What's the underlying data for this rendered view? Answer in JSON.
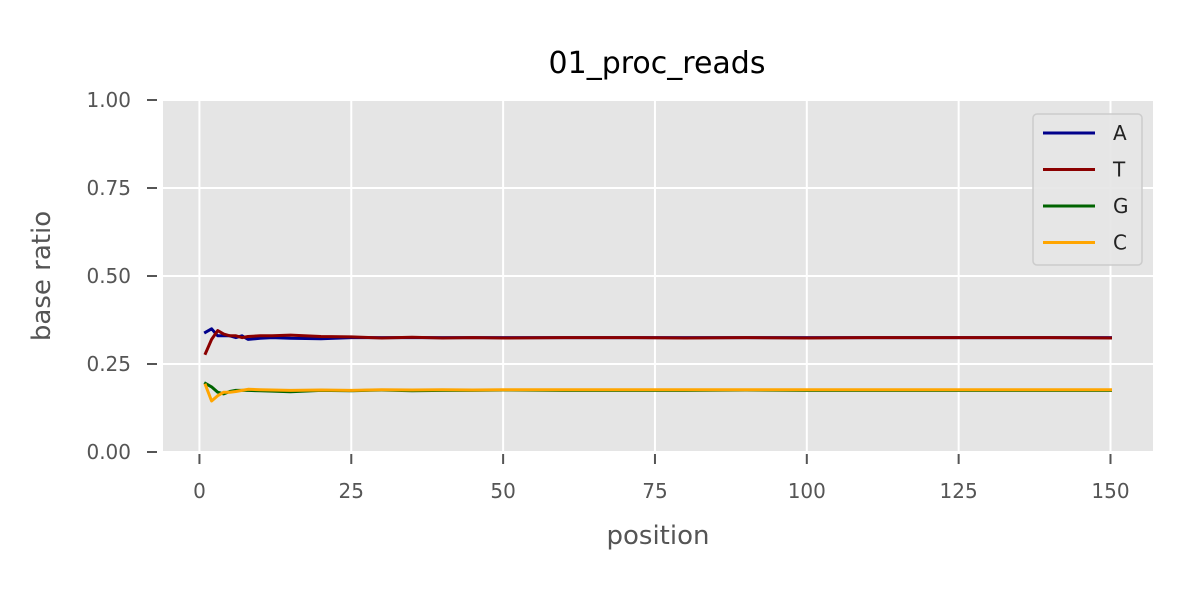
{
  "chart_data": {
    "type": "line",
    "title": "01_proc_reads",
    "xlabel": "position",
    "ylabel": "base ratio",
    "xlim": [
      -6,
      157
    ],
    "ylim": [
      0,
      1
    ],
    "xticks": [
      0,
      25,
      50,
      75,
      100,
      125,
      150
    ],
    "yticks": [
      "0.00",
      "0.25",
      "0.50",
      "0.75",
      "1.00"
    ],
    "grid": true,
    "legend": {
      "position": "top-right",
      "entries": [
        "A",
        "T",
        "G",
        "C"
      ]
    },
    "series": [
      {
        "name": "A",
        "color": "#00008b",
        "x": [
          1,
          2,
          3,
          4,
          5,
          6,
          7,
          8,
          10,
          12,
          15,
          20,
          25,
          30,
          35,
          40,
          45,
          50,
          60,
          70,
          80,
          90,
          100,
          110,
          120,
          130,
          140,
          150
        ],
        "y": [
          0.34,
          0.35,
          0.33,
          0.33,
          0.33,
          0.325,
          0.33,
          0.32,
          0.323,
          0.325,
          0.323,
          0.322,
          0.325,
          0.325,
          0.325,
          0.325,
          0.325,
          0.325,
          0.325,
          0.325,
          0.325,
          0.325,
          0.325,
          0.325,
          0.325,
          0.325,
          0.325,
          0.325
        ]
      },
      {
        "name": "T",
        "color": "#8b0000",
        "x": [
          1,
          2,
          3,
          4,
          5,
          6,
          7,
          8,
          10,
          12,
          15,
          20,
          25,
          30,
          35,
          40,
          45,
          50,
          60,
          70,
          80,
          90,
          100,
          110,
          120,
          130,
          140,
          150
        ],
        "y": [
          0.28,
          0.32,
          0.345,
          0.335,
          0.33,
          0.33,
          0.325,
          0.328,
          0.33,
          0.33,
          0.332,
          0.328,
          0.327,
          0.324,
          0.326,
          0.324,
          0.325,
          0.324,
          0.325,
          0.325,
          0.324,
          0.325,
          0.324,
          0.325,
          0.325,
          0.325,
          0.325,
          0.324
        ]
      },
      {
        "name": "G",
        "color": "#006400",
        "x": [
          1,
          2,
          3,
          4,
          5,
          6,
          7,
          8,
          10,
          12,
          15,
          20,
          25,
          30,
          35,
          40,
          45,
          50,
          60,
          70,
          80,
          90,
          100,
          110,
          120,
          130,
          140,
          150
        ],
        "y": [
          0.195,
          0.185,
          0.17,
          0.165,
          0.172,
          0.175,
          0.175,
          0.175,
          0.174,
          0.173,
          0.171,
          0.175,
          0.174,
          0.176,
          0.174,
          0.175,
          0.175,
          0.176,
          0.175,
          0.175,
          0.175,
          0.176,
          0.175,
          0.175,
          0.175,
          0.175,
          0.175,
          0.175
        ]
      },
      {
        "name": "C",
        "color": "#ffa500",
        "x": [
          1,
          2,
          3,
          4,
          5,
          6,
          7,
          8,
          10,
          12,
          15,
          20,
          25,
          30,
          35,
          40,
          45,
          50,
          60,
          70,
          80,
          90,
          100,
          110,
          120,
          130,
          140,
          150
        ],
        "y": [
          0.19,
          0.145,
          0.16,
          0.17,
          0.17,
          0.172,
          0.175,
          0.178,
          0.177,
          0.176,
          0.175,
          0.176,
          0.175,
          0.177,
          0.176,
          0.177,
          0.176,
          0.177,
          0.177,
          0.177,
          0.177,
          0.177,
          0.177,
          0.177,
          0.177,
          0.177,
          0.177,
          0.177
        ]
      }
    ]
  }
}
